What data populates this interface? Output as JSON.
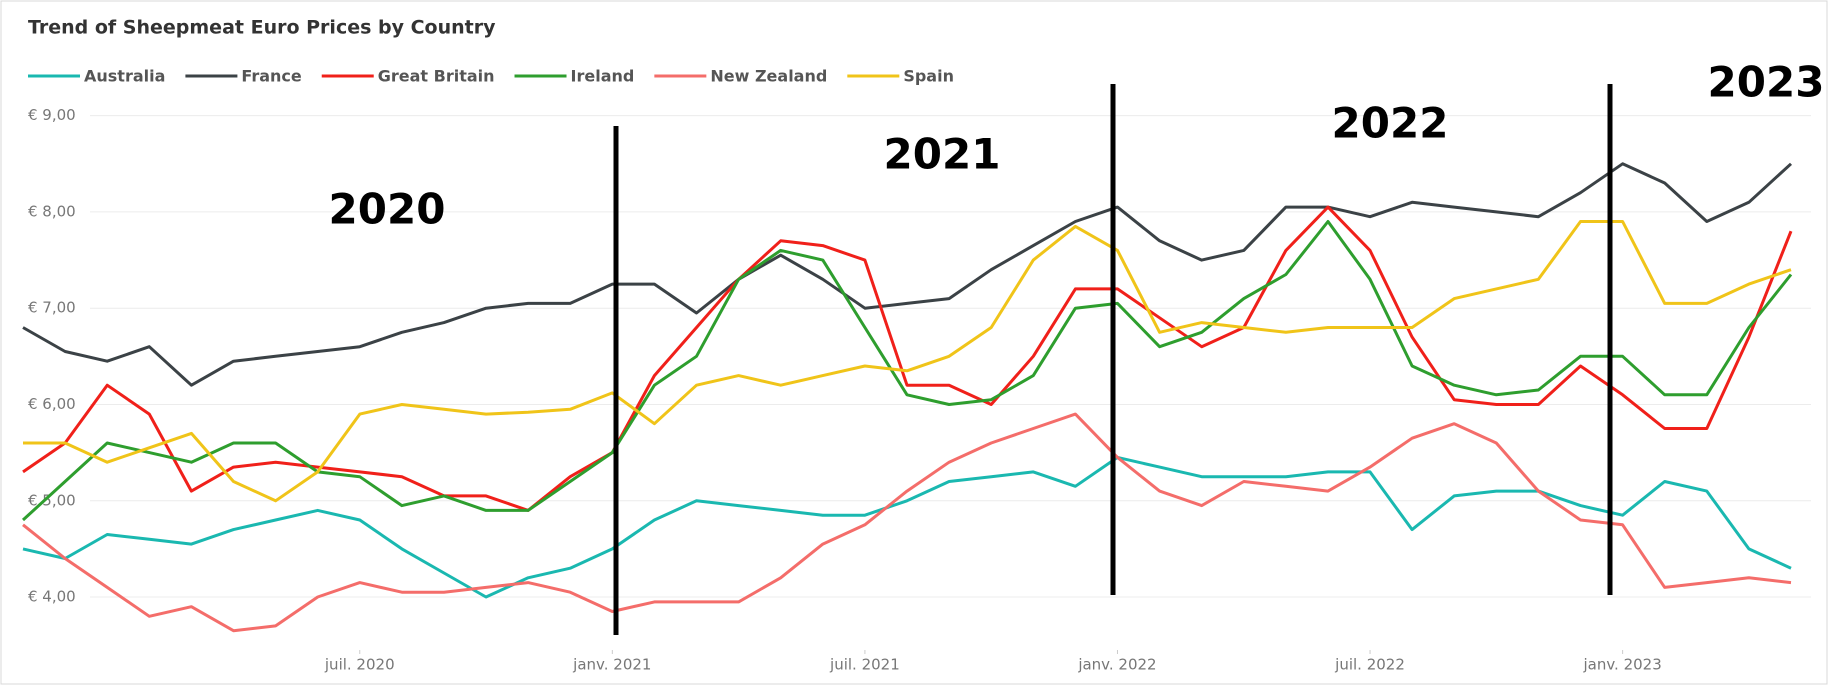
{
  "chart_data": {
    "type": "line",
    "title": "Trend of Sheepmeat Euro Prices by Country",
    "x": [
      "2019-11",
      "2019-12",
      "2020-01",
      "2020-02",
      "2020-03",
      "2020-04",
      "2020-05",
      "2020-06",
      "2020-07",
      "2020-08",
      "2020-09",
      "2020-10",
      "2020-11",
      "2020-12",
      "2021-01",
      "2021-02",
      "2021-03",
      "2021-04",
      "2021-05",
      "2021-06",
      "2021-07",
      "2021-08",
      "2021-09",
      "2021-10",
      "2021-11",
      "2021-12",
      "2022-01",
      "2022-02",
      "2022-03",
      "2022-04",
      "2022-05",
      "2022-06",
      "2022-07",
      "2022-08",
      "2022-09",
      "2022-10",
      "2022-11",
      "2022-12",
      "2023-01",
      "2023-02",
      "2023-03",
      "2023-04",
      "2023-05"
    ],
    "xlim": [
      "2019-11",
      "2023-05"
    ],
    "xticks": [
      {
        "value": "2020-07",
        "label": "juil. 2020"
      },
      {
        "value": "2021-01",
        "label": "janv. 2021"
      },
      {
        "value": "2021-07",
        "label": "juil. 2021"
      },
      {
        "value": "2022-01",
        "label": "janv. 2022"
      },
      {
        "value": "2022-07",
        "label": "juil. 2022"
      },
      {
        "value": "2023-01",
        "label": "janv. 2023"
      }
    ],
    "ylim": [
      3.45,
      9.1
    ],
    "yticks": [
      {
        "value": 4,
        "label": "€ 4,00"
      },
      {
        "value": 5,
        "label": "€ 5,00"
      },
      {
        "value": 6,
        "label": "€ 6,00"
      },
      {
        "value": 7,
        "label": "€ 7,00"
      },
      {
        "value": 8,
        "label": "€ 8,00"
      },
      {
        "value": 9,
        "label": "€ 9,00"
      }
    ],
    "grid": true,
    "legend": "top-left",
    "annotations": [
      "2020",
      "2021",
      "2022",
      "2023"
    ],
    "series": [
      {
        "name": "Australia",
        "color": "#1ab8b0",
        "values": [
          4.5,
          4.4,
          4.65,
          4.6,
          4.55,
          4.7,
          4.8,
          4.9,
          4.8,
          4.5,
          4.25,
          4.0,
          4.2,
          4.3,
          4.5,
          4.8,
          5.0,
          4.95,
          4.9,
          4.85,
          4.85,
          5.0,
          5.2,
          5.25,
          5.3,
          5.15,
          5.45,
          5.35,
          5.25,
          5.25,
          5.25,
          5.3,
          5.3,
          4.7,
          5.05,
          5.1,
          5.1,
          4.95,
          4.85,
          5.2,
          5.1,
          4.5,
          4.3
        ]
      },
      {
        "name": "France",
        "color": "#3b4246",
        "values": [
          6.8,
          6.55,
          6.45,
          6.6,
          6.2,
          6.45,
          6.5,
          6.55,
          6.6,
          6.75,
          6.85,
          7.0,
          7.05,
          7.05,
          7.25,
          7.25,
          6.95,
          7.3,
          7.55,
          7.3,
          7.0,
          7.05,
          7.1,
          7.4,
          7.65,
          7.9,
          8.05,
          7.7,
          7.5,
          7.6,
          8.05,
          8.05,
          7.95,
          8.1,
          8.05,
          8.0,
          7.95,
          8.2,
          8.5,
          8.3,
          7.9,
          8.1,
          8.5
        ]
      },
      {
        "name": "Great Britain",
        "color": "#f0201a",
        "values": [
          5.3,
          5.6,
          6.2,
          5.9,
          5.1,
          5.35,
          5.4,
          5.35,
          5.3,
          5.25,
          5.05,
          5.05,
          4.9,
          5.25,
          5.5,
          6.3,
          6.8,
          7.3,
          7.7,
          7.65,
          7.5,
          6.2,
          6.2,
          6.0,
          6.5,
          7.2,
          7.2,
          6.9,
          6.6,
          6.8,
          7.6,
          8.05,
          7.6,
          6.7,
          6.05,
          6.0,
          6.0,
          6.4,
          6.1,
          5.75,
          5.75,
          6.7,
          7.8
        ]
      },
      {
        "name": "Ireland",
        "color": "#2e9e2e",
        "values": [
          4.8,
          5.2,
          5.6,
          5.5,
          5.4,
          5.6,
          5.6,
          5.3,
          5.25,
          4.95,
          5.05,
          4.9,
          4.9,
          5.2,
          5.5,
          6.2,
          6.5,
          7.3,
          7.6,
          7.5,
          6.8,
          6.1,
          6.0,
          6.05,
          6.3,
          7.0,
          7.05,
          6.6,
          6.75,
          7.1,
          7.35,
          7.9,
          7.3,
          6.4,
          6.2,
          6.1,
          6.15,
          6.5,
          6.5,
          6.1,
          6.1,
          6.8,
          7.35
        ]
      },
      {
        "name": "New Zealand",
        "color": "#f46d6a",
        "values": [
          4.75,
          4.4,
          4.1,
          3.8,
          3.9,
          3.65,
          3.7,
          4.0,
          4.15,
          4.05,
          4.05,
          4.1,
          4.15,
          4.05,
          3.85,
          3.95,
          3.95,
          3.95,
          4.2,
          4.55,
          4.75,
          5.1,
          5.4,
          5.6,
          5.75,
          5.9,
          5.45,
          5.1,
          4.95,
          5.2,
          5.15,
          5.1,
          5.35,
          5.65,
          5.8,
          5.6,
          5.1,
          4.8,
          4.75,
          4.1,
          4.15,
          4.2,
          4.15
        ]
      },
      {
        "name": "Spain",
        "color": "#f0c419",
        "values": [
          5.6,
          5.6,
          5.4,
          5.55,
          5.7,
          5.2,
          5.0,
          5.3,
          5.9,
          6.0,
          5.95,
          5.9,
          5.92,
          5.95,
          6.12,
          5.8,
          6.2,
          6.3,
          6.2,
          6.3,
          6.4,
          6.35,
          6.5,
          6.8,
          7.5,
          7.85,
          7.6,
          6.75,
          6.85,
          6.8,
          6.75,
          6.8,
          6.8,
          6.8,
          7.1,
          7.2,
          7.3,
          7.9,
          7.9,
          7.05,
          7.05,
          7.25,
          7.4
        ]
      }
    ]
  }
}
